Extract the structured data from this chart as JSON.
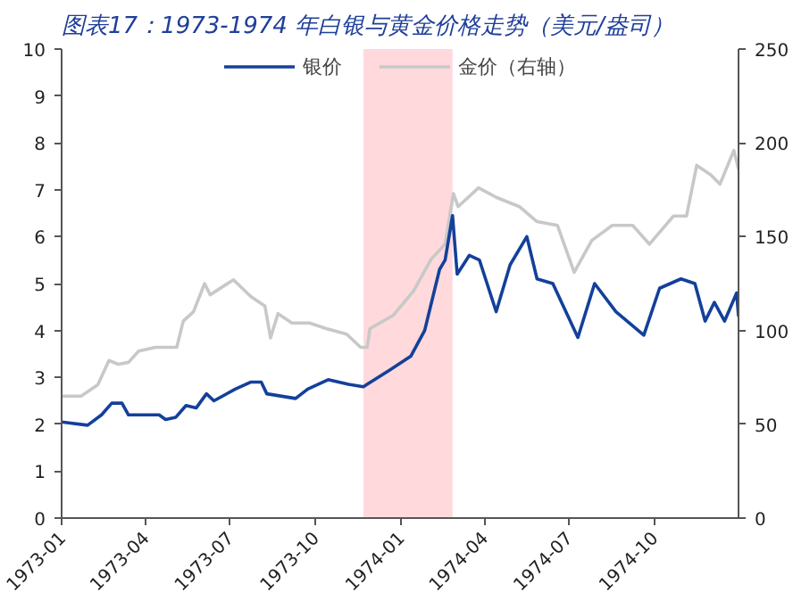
{
  "chart_data": {
    "type": "line",
    "title": "图表17：1973-1974 年白银与黄金价格走势（美元/盎司）",
    "xlim": [
      "1973-01-01",
      "1974-12-31"
    ],
    "xticks": [
      {
        "value": "1973-01-01",
        "label": "1973-01"
      },
      {
        "value": "1973-04-01",
        "label": "1973-04"
      },
      {
        "value": "1973-07-01",
        "label": "1973-07"
      },
      {
        "value": "1973-10-01",
        "label": "1973-10"
      },
      {
        "value": "1974-01-01",
        "label": "1974-01"
      },
      {
        "value": "1974-04-01",
        "label": "1974-04"
      },
      {
        "value": "1974-07-01",
        "label": "1974-07"
      },
      {
        "value": "1974-10-01",
        "label": "1974-10"
      }
    ],
    "ylim": [
      0,
      10
    ],
    "yticks": [
      0,
      1,
      2,
      3,
      4,
      5,
      6,
      7,
      8,
      9,
      10
    ],
    "y2lim": [
      0,
      250
    ],
    "y2ticks": [
      0,
      50,
      100,
      150,
      200,
      250
    ],
    "legend": "top",
    "grid": false,
    "line_style": "solid",
    "marker": "none",
    "bands": [
      {
        "axis": "x",
        "from": "1973-11-22",
        "to": "1974-02-26",
        "color": "#ffd9dc"
      }
    ],
    "series": [
      {
        "name": "银价",
        "color": "#13409a",
        "x": [
          "1973-01-01",
          "1973-01-29",
          "1973-02-13",
          "1973-02-24",
          "1973-03-07",
          "1973-03-14",
          "1973-04-16",
          "1973-04-23",
          "1973-05-04",
          "1973-05-15",
          "1973-05-26",
          "1973-06-06",
          "1973-06-14",
          "1973-07-07",
          "1973-07-24",
          "1973-08-04",
          "1973-08-10",
          "1973-09-10",
          "1973-09-23",
          "1973-10-15",
          "1973-11-06",
          "1973-11-22",
          "1973-11-26",
          "1973-12-20",
          "1974-01-12",
          "1974-01-27",
          "1974-02-12",
          "1974-02-18",
          "1974-02-26",
          "1974-03-03",
          "1974-03-16",
          "1974-03-27",
          "1974-04-14",
          "1974-04-29",
          "1974-05-17",
          "1974-05-28",
          "1974-06-14",
          "1974-07-11",
          "1974-07-29",
          "1974-08-21",
          "1974-09-20",
          "1974-10-07",
          "1974-10-30",
          "1974-11-14",
          "1974-11-25",
          "1974-12-05",
          "1974-12-16",
          "1974-12-29",
          "1974-12-31"
        ],
        "values": [
          2.05,
          1.98,
          2.2,
          2.45,
          2.45,
          2.2,
          2.2,
          2.1,
          2.15,
          2.4,
          2.35,
          2.65,
          2.5,
          2.75,
          2.9,
          2.9,
          2.65,
          2.55,
          2.75,
          2.95,
          2.85,
          2.8,
          2.85,
          3.15,
          3.45,
          4.0,
          5.3,
          5.5,
          6.45,
          5.2,
          5.6,
          5.5,
          4.4,
          5.4,
          6.0,
          5.1,
          5.0,
          3.85,
          5.0,
          4.4,
          3.9,
          4.9,
          5.1,
          5.0,
          4.2,
          4.6,
          4.2,
          4.8,
          4.3
        ]
      },
      {
        "name": "金价（右轴）",
        "color": "#c8c8c8",
        "axis": "y2",
        "x": [
          "1973-01-01",
          "1973-01-22",
          "1973-02-09",
          "1973-02-21",
          "1973-03-03",
          "1973-03-14",
          "1973-03-25",
          "1973-04-12",
          "1973-05-05",
          "1973-05-12",
          "1973-05-23",
          "1973-06-04",
          "1973-06-10",
          "1973-07-05",
          "1973-07-24",
          "1973-08-08",
          "1973-08-14",
          "1973-08-22",
          "1973-09-06",
          "1973-09-25",
          "1973-10-13",
          "1973-11-04",
          "1973-11-19",
          "1973-11-26",
          "1973-11-29",
          "1973-12-24",
          "1974-01-15",
          "1974-02-03",
          "1974-02-18",
          "1974-02-27",
          "1974-03-04",
          "1974-03-26",
          "1974-04-14",
          "1974-05-09",
          "1974-05-28",
          "1974-06-19",
          "1974-07-07",
          "1974-07-26",
          "1974-08-17",
          "1974-09-08",
          "1974-09-26",
          "1974-10-22",
          "1974-11-05",
          "1974-11-16",
          "1974-12-01",
          "1974-12-11",
          "1974-12-26",
          "1974-12-31"
        ],
        "values": [
          65,
          65,
          71,
          84,
          82,
          83,
          89,
          91,
          91,
          105,
          110,
          125,
          119,
          127,
          118,
          113,
          96,
          109,
          104,
          104,
          101,
          98,
          91,
          91,
          101,
          108,
          121,
          138,
          146,
          173,
          166,
          176,
          171,
          166,
          158,
          156,
          131,
          148,
          156,
          156,
          146,
          161,
          161,
          188,
          183,
          178,
          196,
          186
        ]
      }
    ]
  }
}
